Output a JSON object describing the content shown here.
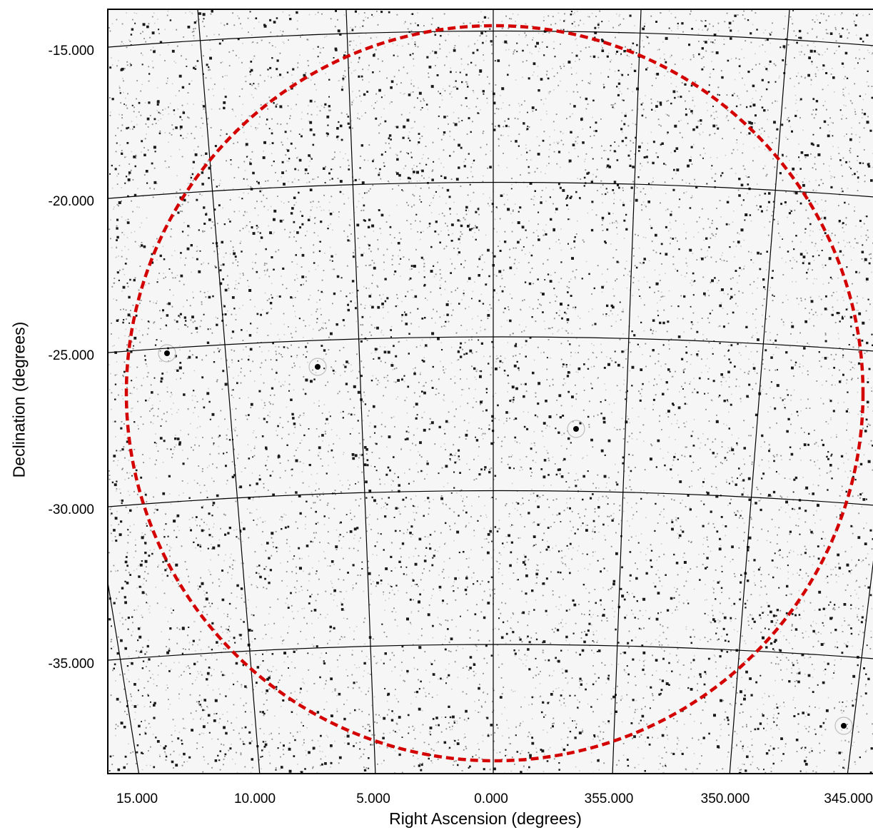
{
  "figure": {
    "type": "radio-sky-image",
    "colormap": "grayscale-inverted",
    "xlabel": "Right Ascension (degrees)",
    "ylabel": "Declination (degrees)",
    "ra_ticks": [
      "15.000",
      "10.000",
      "5.000",
      "0.000",
      "355.000",
      "350.000",
      "345.000"
    ],
    "dec_ticks": [
      "-15.000",
      "-20.000",
      "-25.000",
      "-30.000",
      "-35.000"
    ],
    "grid": true,
    "field_outline": {
      "shape": "circle",
      "style": "dashed",
      "color": "#d40000",
      "center_ra": 0.0,
      "center_dec": -26.0,
      "radius_deg": 12.0
    }
  }
}
